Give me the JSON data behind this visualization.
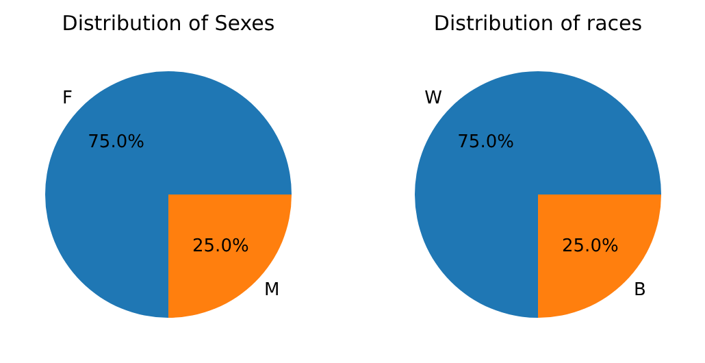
{
  "chart_data": [
    {
      "type": "pie",
      "title": "Distribution of Sexes",
      "categories": [
        "F",
        "M"
      ],
      "values": [
        75,
        25
      ],
      "colors": [
        "#1f77b4",
        "#ff7f0e"
      ],
      "value_labels": [
        "75.0%",
        "25.0%"
      ]
    },
    {
      "type": "pie",
      "title": "Distribution of races",
      "categories": [
        "W",
        "B"
      ],
      "values": [
        75,
        25
      ],
      "colors": [
        "#1f77b4",
        "#ff7f0e"
      ],
      "value_labels": [
        "75.0%",
        "25.0%"
      ]
    }
  ]
}
